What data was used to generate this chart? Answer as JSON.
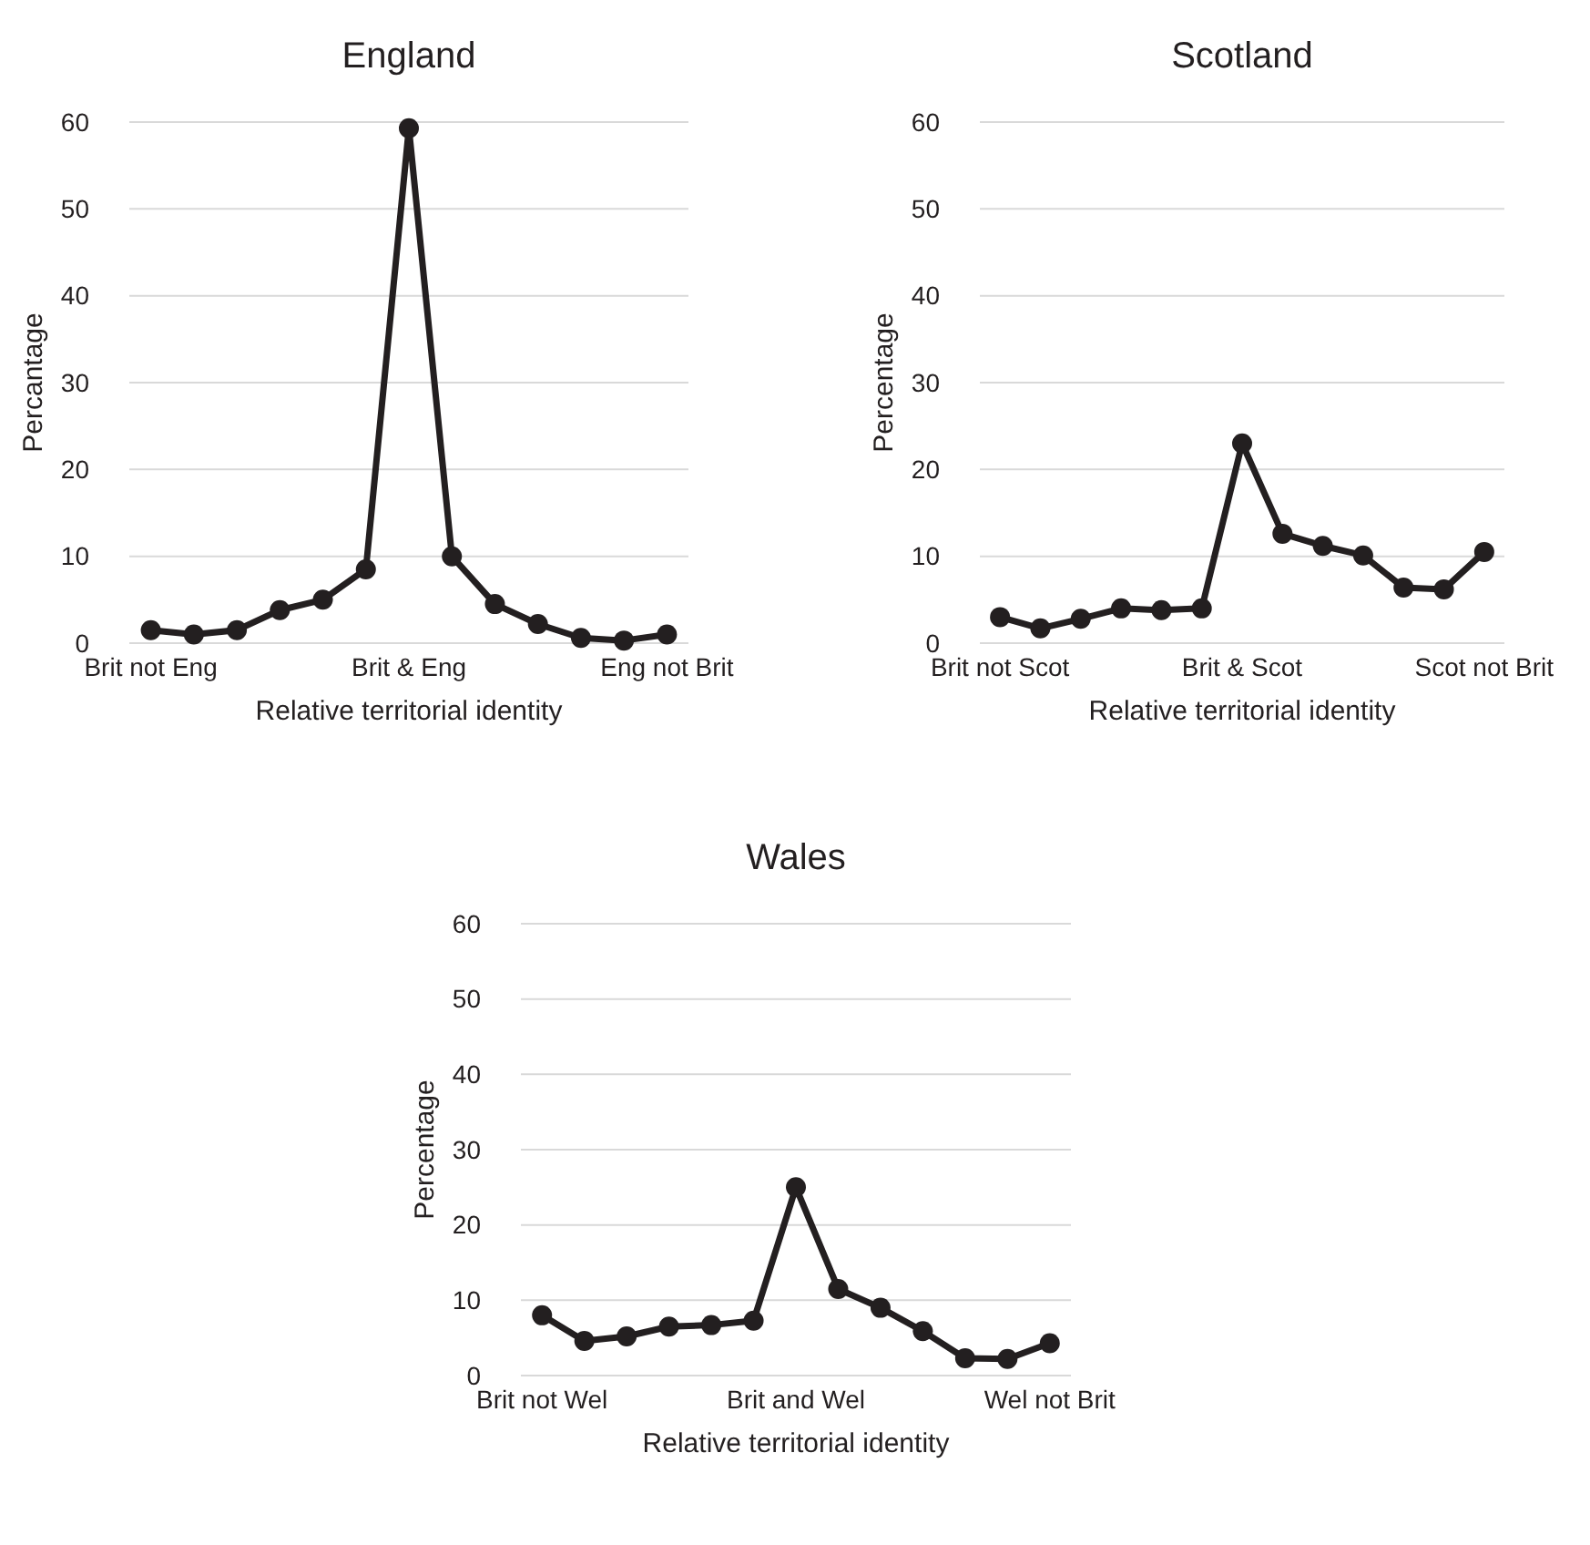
{
  "chart_data": [
    {
      "type": "line",
      "title": "England",
      "xlabel": "Relative territorial identity",
      "ylabel": "Percantage",
      "categories": [
        "Brit not Eng",
        null,
        null,
        null,
        null,
        null,
        "Brit & Eng",
        null,
        null,
        null,
        null,
        null,
        "Eng not Brit"
      ],
      "series": [
        {
          "color": "#231f20",
          "values": [
            1.5,
            1,
            1.5,
            3.8,
            5,
            8.5,
            59.3,
            10,
            4.5,
            2.2,
            0.6,
            0.3,
            1
          ]
        }
      ],
      "ylim": [
        0,
        60
      ],
      "yticks": [
        0,
        10,
        20,
        30,
        40,
        50,
        60
      ],
      "grid": "y",
      "marker": "circle",
      "line_style": "solid"
    },
    {
      "type": "line",
      "title": "Scotland",
      "xlabel": "Relative territorial identity",
      "ylabel": "Percentage",
      "categories": [
        "Brit not Scot",
        null,
        null,
        null,
        null,
        null,
        "Brit & Scot",
        null,
        null,
        null,
        null,
        null,
        "Scot not Brit"
      ],
      "series": [
        {
          "color": "#231f20",
          "values": [
            3,
            1.7,
            2.8,
            4,
            3.8,
            4,
            23,
            12.6,
            11.2,
            10.1,
            6.4,
            6.2,
            10.5
          ]
        }
      ],
      "ylim": [
        0,
        60
      ],
      "yticks": [
        0,
        10,
        20,
        30,
        40,
        50,
        60
      ],
      "grid": "y",
      "marker": "circle",
      "line_style": "solid"
    },
    {
      "type": "line",
      "title": "Wales",
      "xlabel": "Relative territorial identity",
      "ylabel": "Percentage",
      "categories": [
        "Brit not Wel",
        null,
        null,
        null,
        null,
        null,
        "Brit and Wel",
        null,
        null,
        null,
        null,
        null,
        "Wel not Brit"
      ],
      "series": [
        {
          "color": "#231f20",
          "values": [
            8,
            4.6,
            5.2,
            6.5,
            6.7,
            7.3,
            25,
            11.5,
            9,
            5.9,
            2.3,
            2.2,
            4.3
          ]
        }
      ],
      "ylim": [
        0,
        60
      ],
      "yticks": [
        0,
        10,
        20,
        30,
        40,
        50,
        60
      ],
      "grid": "y",
      "marker": "circle",
      "line_style": "solid"
    }
  ]
}
